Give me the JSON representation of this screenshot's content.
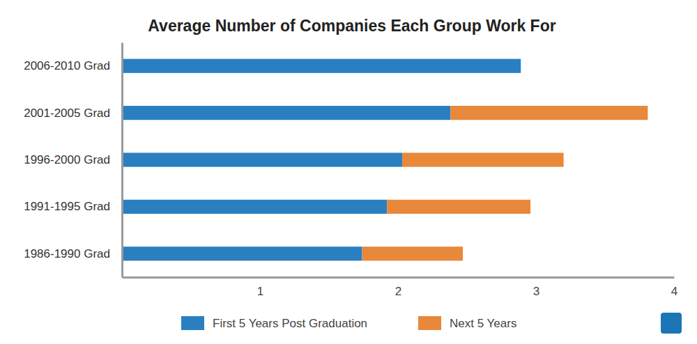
{
  "chart_data": {
    "type": "bar",
    "orientation": "horizontal",
    "stacked": true,
    "title": "Average Number of Companies Each Group Work For",
    "categories": [
      "2006-2010 Grad",
      "2001-2005 Grad",
      "1996-2000 Grad",
      "1991-1995 Grad",
      "1986-1990 Grad"
    ],
    "series": [
      {
        "name": "First 5 Years Post Graduation",
        "color": "#2a7fc1",
        "values": [
          2.89,
          2.38,
          2.03,
          1.92,
          1.74
        ]
      },
      {
        "name": "Next 5 Years",
        "color": "#e8883a",
        "values": [
          null,
          1.43,
          1.17,
          1.04,
          0.73
        ]
      }
    ],
    "xlim": [
      0,
      4
    ],
    "xticks": [
      1,
      2,
      3,
      4
    ],
    "grid": false,
    "legend": "bottom"
  }
}
